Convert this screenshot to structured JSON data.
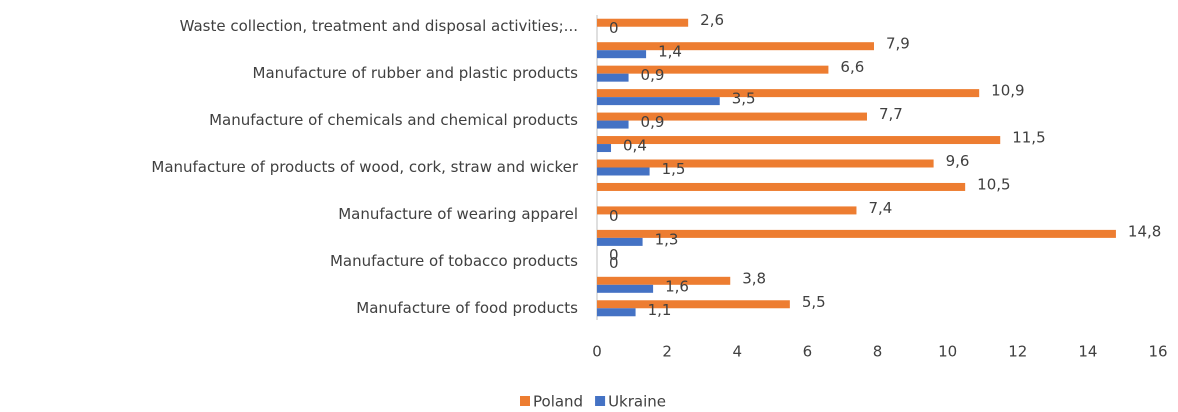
{
  "chart_data": {
    "type": "bar",
    "orientation": "horizontal",
    "categories": [
      "Waste collection, treatment and disposal activities;...",
      null,
      "Manufacture of rubber and plastic products",
      null,
      "Manufacture of chemicals and chemical products",
      null,
      "Manufacture of products of wood, cork, straw and wicker",
      null,
      "Manufacture of wearing apparel",
      null,
      "Manufacture of tobacco products",
      null,
      "Manufacture of food products"
    ],
    "series": [
      {
        "name": "Poland",
        "color": "#ed7d31",
        "values": [
          2.6,
          7.9,
          6.6,
          10.9,
          7.7,
          11.5,
          9.6,
          10.5,
          7.4,
          14.8,
          0,
          3.8,
          5.5
        ],
        "value_labels": [
          "2,6",
          "7,9",
          "6,6",
          "10,9",
          "7,7",
          "11,5",
          "9,6",
          "10,5",
          "7,4",
          "14,8",
          "0",
          "3,8",
          "5,5"
        ]
      },
      {
        "name": "Ukraine",
        "color": "#4472c4",
        "values": [
          0,
          1.4,
          0.9,
          3.5,
          0.9,
          0.4,
          1.5,
          null,
          0,
          1.3,
          0,
          1.6,
          1.1
        ],
        "value_labels": [
          "0",
          "1,4",
          "0,9",
          "3,5",
          "0,9",
          "0,4",
          "1,5",
          null,
          "0",
          "1,3",
          "0",
          "1,6",
          "1,1"
        ]
      }
    ],
    "xlim": [
      0,
      16
    ],
    "xticks": [
      0,
      2,
      4,
      6,
      8,
      10,
      12,
      14,
      16
    ],
    "grid": false,
    "legend": "bottom"
  }
}
